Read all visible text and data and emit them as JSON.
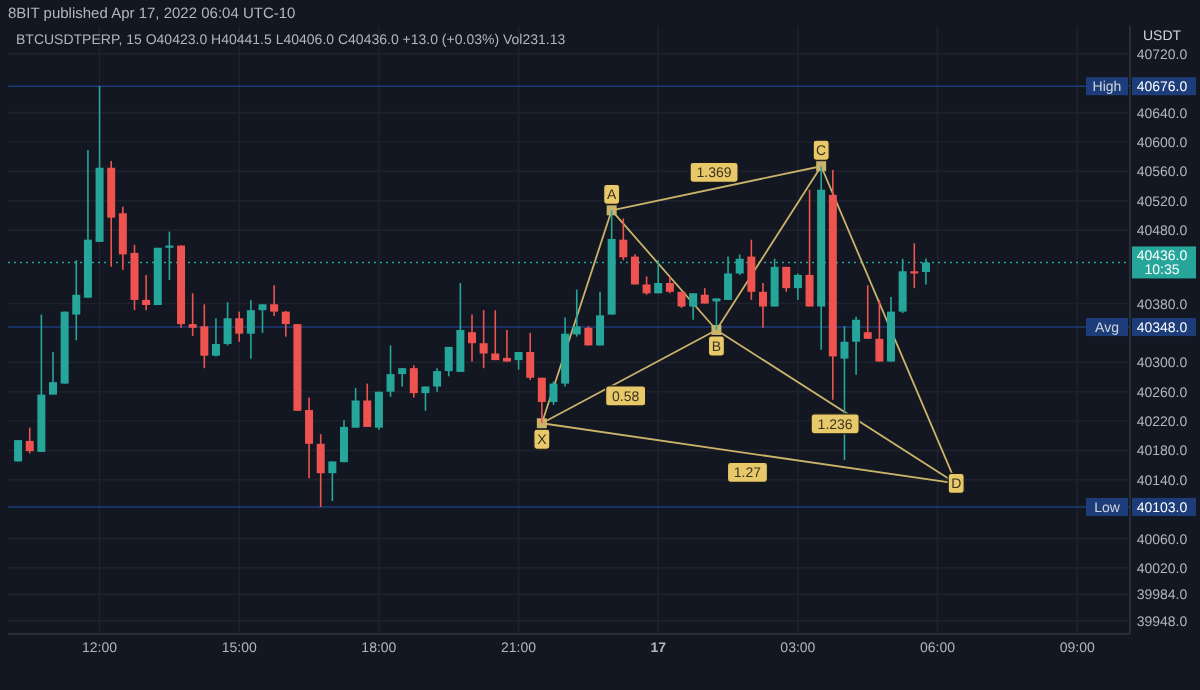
{
  "chart_data": {
    "type": "candlestick",
    "title": "8BIT published Apr 17, 2022 06:04 UTC-10",
    "subtitle": "BTCUSDTPERP, 15  O40423.0  H40441.5  L40406.0  C40436.0  +13.0 (+0.03%)  Vol231.13",
    "ylabel": "USDT",
    "x": [
      "2022-04-16T10:15",
      "2022-04-16T10:30",
      "2022-04-16T10:45",
      "2022-04-16T11:00",
      "2022-04-16T11:15",
      "2022-04-16T11:30",
      "2022-04-16T11:45",
      "2022-04-16T12:00",
      "2022-04-16T12:15",
      "2022-04-16T12:30",
      "2022-04-16T12:45",
      "2022-04-16T13:00",
      "2022-04-16T13:15",
      "2022-04-16T13:30",
      "2022-04-16T13:45",
      "2022-04-16T14:00",
      "2022-04-16T14:15",
      "2022-04-16T14:30",
      "2022-04-16T14:45",
      "2022-04-16T15:00",
      "2022-04-16T15:15",
      "2022-04-16T15:30",
      "2022-04-16T15:45",
      "2022-04-16T16:00",
      "2022-04-16T16:15",
      "2022-04-16T16:30",
      "2022-04-16T16:45",
      "2022-04-16T17:00",
      "2022-04-16T17:15",
      "2022-04-16T17:30",
      "2022-04-16T17:45",
      "2022-04-16T18:00",
      "2022-04-16T18:15",
      "2022-04-16T18:30",
      "2022-04-16T18:45",
      "2022-04-16T19:00",
      "2022-04-16T19:15",
      "2022-04-16T19:30",
      "2022-04-16T19:45",
      "2022-04-16T20:00",
      "2022-04-16T20:15",
      "2022-04-16T20:30",
      "2022-04-16T20:45",
      "2022-04-16T21:00",
      "2022-04-16T21:15",
      "2022-04-16T21:30",
      "2022-04-16T21:45",
      "2022-04-16T22:00",
      "2022-04-16T22:15",
      "2022-04-16T22:30",
      "2022-04-16T22:45",
      "2022-04-16T23:00",
      "2022-04-16T23:15",
      "2022-04-16T23:30",
      "2022-04-16T23:45",
      "2022-04-17T00:00",
      "2022-04-17T00:15",
      "2022-04-17T00:30",
      "2022-04-17T00:45",
      "2022-04-17T01:00",
      "2022-04-17T01:15",
      "2022-04-17T01:30",
      "2022-04-17T01:45",
      "2022-04-17T02:00",
      "2022-04-17T02:15",
      "2022-04-17T02:30",
      "2022-04-17T02:45",
      "2022-04-17T03:00",
      "2022-04-17T03:15",
      "2022-04-17T03:30",
      "2022-04-17T03:45",
      "2022-04-17T04:00",
      "2022-04-17T04:15",
      "2022-04-17T04:30",
      "2022-04-17T04:45",
      "2022-04-17T05:00",
      "2022-04-17T05:15",
      "2022-04-17T05:30",
      "2022-04-17T05:45"
    ],
    "ohlc": [
      [
        40165,
        40194,
        40165,
        40194
      ],
      [
        40193,
        40211,
        40176,
        40179
      ],
      [
        40178,
        40365,
        40178,
        40256
      ],
      [
        40256,
        40314,
        40256,
        40273
      ],
      [
        40271,
        40369,
        40271,
        40369
      ],
      [
        40365,
        40439,
        40330,
        40392
      ],
      [
        40388,
        40589,
        40388,
        40467
      ],
      [
        40464,
        40676,
        40464,
        40565
      ],
      [
        40565,
        40574,
        40430,
        40497
      ],
      [
        40503,
        40512,
        40426,
        40447
      ],
      [
        40449,
        40460,
        40371,
        40385
      ],
      [
        40385,
        40419,
        40371,
        40378
      ],
      [
        40378,
        40456,
        40378,
        40456
      ],
      [
        40456,
        40478,
        40412,
        40459
      ],
      [
        40459,
        40459,
        40347,
        40352
      ],
      [
        40352,
        40394,
        40336,
        40347
      ],
      [
        40349,
        40379,
        40292,
        40309
      ],
      [
        40309,
        40360,
        40308,
        40325
      ],
      [
        40325,
        40382,
        40323,
        40360
      ],
      [
        40360,
        40369,
        40328,
        40339
      ],
      [
        40339,
        40385,
        40305,
        40371
      ],
      [
        40371,
        40379,
        40340,
        40379
      ],
      [
        40379,
        40405,
        40363,
        40369
      ],
      [
        40369,
        40370,
        40335,
        40352
      ],
      [
        40352,
        40352,
        40234,
        40234
      ],
      [
        40235,
        40252,
        40142,
        40189
      ],
      [
        40189,
        40202,
        40103,
        40149
      ],
      [
        40149,
        40165,
        40111,
        40165
      ],
      [
        40164,
        40221,
        40164,
        40212
      ],
      [
        40211,
        40265,
        40211,
        40248
      ],
      [
        40248,
        40271,
        40212,
        40212
      ],
      [
        40211,
        40260,
        40208,
        40260
      ],
      [
        40260,
        40323,
        40253,
        40284
      ],
      [
        40284,
        40292,
        40267,
        40292
      ],
      [
        40292,
        40296,
        40252,
        40258
      ],
      [
        40258,
        40267,
        40234,
        40267
      ],
      [
        40267,
        40292,
        40260,
        40288
      ],
      [
        40288,
        40321,
        40281,
        40321
      ],
      [
        40287,
        40408,
        40287,
        40344
      ],
      [
        40341,
        40365,
        40301,
        40326
      ],
      [
        40326,
        40371,
        40292,
        40312
      ],
      [
        40312,
        40371,
        40303,
        40303
      ],
      [
        40306,
        40344,
        40301,
        40301
      ],
      [
        40303,
        40314,
        40290,
        40314
      ],
      [
        40314,
        40340,
        40276,
        40279
      ],
      [
        40279,
        40279,
        40217,
        40246
      ],
      [
        40246,
        40274,
        40242,
        40271
      ],
      [
        40271,
        40361,
        40267,
        40339
      ],
      [
        40338,
        40399,
        40335,
        40349
      ],
      [
        40347,
        40349,
        40323,
        40323
      ],
      [
        40323,
        40396,
        40323,
        40364
      ],
      [
        40365,
        40507,
        40365,
        40468
      ],
      [
        40467,
        40496,
        40439,
        40443
      ],
      [
        40444,
        40447,
        40406,
        40406
      ],
      [
        40406,
        40417,
        40392,
        40394
      ],
      [
        40394,
        40439,
        40394,
        40408
      ],
      [
        40408,
        40417,
        40394,
        40396
      ],
      [
        40396,
        40396,
        40374,
        40376
      ],
      [
        40376,
        40394,
        40358,
        40394
      ],
      [
        40392,
        40401,
        40380,
        40380
      ],
      [
        40383,
        40387,
        40344,
        40387
      ],
      [
        40385,
        40444,
        40385,
        40421
      ],
      [
        40421,
        40447,
        40419,
        40441
      ],
      [
        40444,
        40467,
        40385,
        40396
      ],
      [
        40396,
        40408,
        40347,
        40376
      ],
      [
        40376,
        40441,
        40376,
        40430
      ],
      [
        40430,
        40430,
        40396,
        40401
      ],
      [
        40401,
        40421,
        40385,
        40419
      ],
      [
        40419,
        40535,
        40376,
        40376
      ],
      [
        40376,
        40567,
        40317,
        40535
      ],
      [
        40528,
        40562,
        40249,
        40308
      ],
      [
        40305,
        40349,
        40167,
        40328
      ],
      [
        40328,
        40362,
        40283,
        40358
      ],
      [
        40341,
        40405,
        40332,
        40332
      ],
      [
        40332,
        40385,
        40301,
        40301
      ],
      [
        40301,
        40389,
        40301,
        40369
      ],
      [
        40369,
        40441,
        40367,
        40424
      ],
      [
        40424,
        40462,
        40401,
        40421
      ],
      [
        40423,
        40441.5,
        40406,
        40436
      ]
    ],
    "series": [
      {
        "type": "line",
        "color": "#c9b36a",
        "marker": "square",
        "x": [
          "2022-04-16T21:30",
          "2022-04-16T23:00",
          "2022-04-17T01:15",
          "2022-04-17T03:30",
          "2022-04-17T06:24"
        ],
        "values": [
          40217,
          40507,
          40344,
          40567,
          40135
        ]
      },
      {
        "type": "line",
        "color": "#c9b36a",
        "x": [
          "2022-04-16T21:30",
          "2022-04-17T01:15",
          "2022-04-17T06:24"
        ],
        "values": [
          40217,
          40344,
          40135
        ]
      },
      {
        "type": "line",
        "color": "#c9b36a",
        "x": [
          "2022-04-16T21:30",
          "2022-04-17T06:24"
        ],
        "values": [
          40217,
          40135
        ]
      },
      {
        "type": "line",
        "color": "#c9b36a",
        "x": [
          "2022-04-16T23:00",
          "2022-04-17T03:30"
        ],
        "values": [
          40507,
          40567
        ]
      }
    ],
    "xlim": [
      "2022-04-16T10:02",
      "2022-04-17T10:08"
    ],
    "ylim": [
      39930,
      40758
    ],
    "xticks": [
      {
        "value": "2022-04-16T12:00",
        "label": "12:00"
      },
      {
        "value": "2022-04-16T15:00",
        "label": "15:00"
      },
      {
        "value": "2022-04-16T18:00",
        "label": "18:00"
      },
      {
        "value": "2022-04-16T21:00",
        "label": "21:00"
      },
      {
        "value": "2022-04-17T00:00",
        "label": "17"
      },
      {
        "value": "2022-04-17T03:00",
        "label": "03:00"
      },
      {
        "value": "2022-04-17T06:00",
        "label": "06:00"
      },
      {
        "value": "2022-04-17T09:00",
        "label": "09:00"
      }
    ],
    "yticks": [
      {
        "value": 40720,
        "label": "40720.0"
      },
      {
        "value": 40640,
        "label": "40640.0"
      },
      {
        "value": 40600,
        "label": "40600.0"
      },
      {
        "value": 40560,
        "label": "40560.0"
      },
      {
        "value": 40520,
        "label": "40520.0"
      },
      {
        "value": 40480,
        "label": "40480.0"
      },
      {
        "value": 40380,
        "label": "40380.0"
      },
      {
        "value": 40300,
        "label": "40300.0"
      },
      {
        "value": 40260,
        "label": "40260.0"
      },
      {
        "value": 40220,
        "label": "40220.0"
      },
      {
        "value": 40180,
        "label": "40180.0"
      },
      {
        "value": 40140,
        "label": "40140.0"
      },
      {
        "value": 40060,
        "label": "40060.0"
      },
      {
        "value": 40020,
        "label": "40020.0"
      },
      {
        "value": 39984,
        "label": "39984.0"
      },
      {
        "value": 39948,
        "label": "39948.0"
      }
    ],
    "grid": true,
    "ref_lines": [
      {
        "axis": "y",
        "value": 40676,
        "label": "High 40676.0",
        "color": "#1c3d7a"
      },
      {
        "axis": "y",
        "value": 40348,
        "label": "Avg 40348.0",
        "color": "#1c3d7a"
      },
      {
        "axis": "y",
        "value": 40103,
        "label": "Low 40103.0",
        "color": "#1c3d7a"
      },
      {
        "axis": "y",
        "value": 40436,
        "label": "40436.0 10:35",
        "color": "#26a69a",
        "line_style": "dotted"
      }
    ],
    "annotations": [
      {
        "text": "X",
        "x": "2022-04-16T21:30",
        "y": 40217
      },
      {
        "text": "A",
        "x": "2022-04-16T23:00",
        "y": 40507
      },
      {
        "text": "B",
        "x": "2022-04-17T01:15",
        "y": 40344
      },
      {
        "text": "C",
        "x": "2022-04-17T03:30",
        "y": 40567
      },
      {
        "text": "D",
        "x": "2022-04-17T06:24",
        "y": 40135
      },
      {
        "text": "1.369",
        "x": "2022-04-17T01:12",
        "y": 40537
      },
      {
        "text": "0.58",
        "x": "2022-04-16T23:18",
        "y": 40276
      },
      {
        "text": "1.27",
        "x": "2022-04-17T01:55",
        "y": 40172
      },
      {
        "text": "1.236",
        "x": "2022-04-17T03:48",
        "y": 40238
      }
    ]
  }
}
